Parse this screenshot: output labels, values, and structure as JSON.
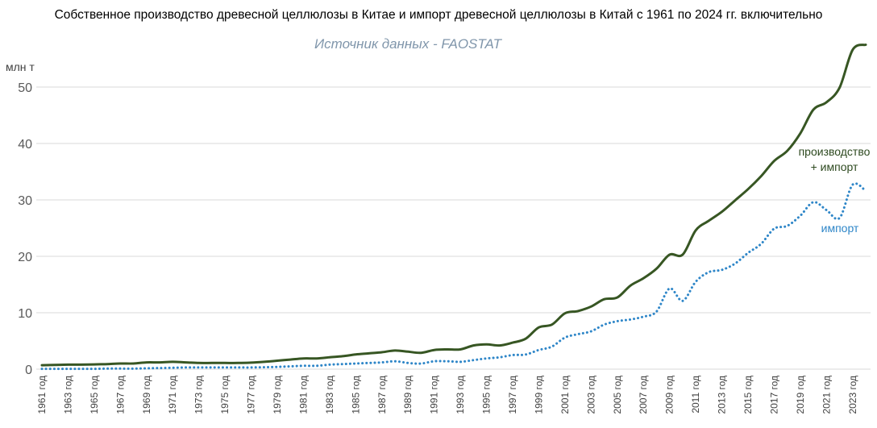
{
  "chart_data": {
    "type": "line",
    "title": "Собственное производство древесной целлюлозы в Китае и импорт древесной целлюлозы в Китай с 1961 по 2024 гг. включительно",
    "subtitle": "Источник данных - FAOSTAT",
    "ylabel": "млн т",
    "ylim": [
      0,
      58
    ],
    "yticks": [
      0,
      10,
      20,
      30,
      40,
      50
    ],
    "grid": true,
    "x": [
      1961,
      1962,
      1963,
      1964,
      1965,
      1966,
      1967,
      1968,
      1969,
      1970,
      1971,
      1972,
      1973,
      1974,
      1975,
      1976,
      1977,
      1978,
      1979,
      1980,
      1981,
      1982,
      1983,
      1984,
      1985,
      1986,
      1987,
      1988,
      1989,
      1990,
      1991,
      1992,
      1993,
      1994,
      1995,
      1996,
      1997,
      1998,
      1999,
      2000,
      2001,
      2002,
      2003,
      2004,
      2005,
      2006,
      2007,
      2008,
      2009,
      2010,
      2011,
      2012,
      2013,
      2014,
      2015,
      2016,
      2017,
      2018,
      2019,
      2020,
      2021,
      2022,
      2023,
      2024
    ],
    "xtick_labels": [
      "1961 год",
      "1963 год",
      "1965 год",
      "1967 год",
      "1969 год",
      "1971 год",
      "1973 год",
      "1975 год",
      "1977 год",
      "1979 год",
      "1981 год",
      "1983 год",
      "1985 год",
      "1987 год",
      "1989 год",
      "1991 год",
      "1993 год",
      "1995 год",
      "1997 год",
      "1999 год",
      "2001 год",
      "2003 год",
      "2005 год",
      "2007 год",
      "2009 год",
      "2011 год",
      "2013 год",
      "2015 год",
      "2017 год",
      "2019 год",
      "2021 год",
      "2023 год"
    ],
    "series": [
      {
        "name": "производство + импорт",
        "label_lines": [
          "производство",
          "+ импорт"
        ],
        "color": "#375623",
        "style": "solid",
        "values": [
          0.7,
          0.75,
          0.8,
          0.8,
          0.85,
          0.9,
          1.0,
          1.0,
          1.2,
          1.2,
          1.3,
          1.2,
          1.1,
          1.1,
          1.1,
          1.1,
          1.15,
          1.3,
          1.5,
          1.7,
          1.9,
          1.9,
          2.1,
          2.3,
          2.6,
          2.8,
          3.0,
          3.3,
          3.1,
          2.9,
          3.4,
          3.5,
          3.5,
          4.2,
          4.4,
          4.2,
          4.7,
          5.4,
          7.4,
          7.9,
          9.9,
          10.3,
          11.1,
          12.4,
          12.7,
          14.8,
          16.1,
          17.8,
          20.3,
          20.3,
          24.6,
          26.3,
          27.9,
          29.9,
          31.9,
          34.2,
          36.9,
          38.7,
          41.8,
          46.0,
          47.3,
          49.9,
          56.6,
          57.5
        ]
      },
      {
        "name": "импорт",
        "color": "#2e86c8",
        "style": "dotted",
        "values": [
          0.05,
          0.05,
          0.05,
          0.05,
          0.05,
          0.1,
          0.1,
          0.1,
          0.15,
          0.2,
          0.25,
          0.3,
          0.3,
          0.3,
          0.3,
          0.3,
          0.3,
          0.35,
          0.4,
          0.5,
          0.6,
          0.6,
          0.8,
          0.9,
          1.0,
          1.1,
          1.2,
          1.4,
          1.1,
          1.0,
          1.4,
          1.4,
          1.3,
          1.6,
          1.9,
          2.1,
          2.5,
          2.6,
          3.4,
          4.0,
          5.6,
          6.2,
          6.7,
          7.9,
          8.5,
          8.8,
          9.3,
          10.2,
          14.3,
          12.1,
          15.5,
          17.2,
          17.6,
          18.7,
          20.6,
          22.2,
          24.9,
          25.4,
          27.2,
          29.6,
          28.2,
          26.8,
          32.7,
          31.6
        ]
      }
    ]
  }
}
